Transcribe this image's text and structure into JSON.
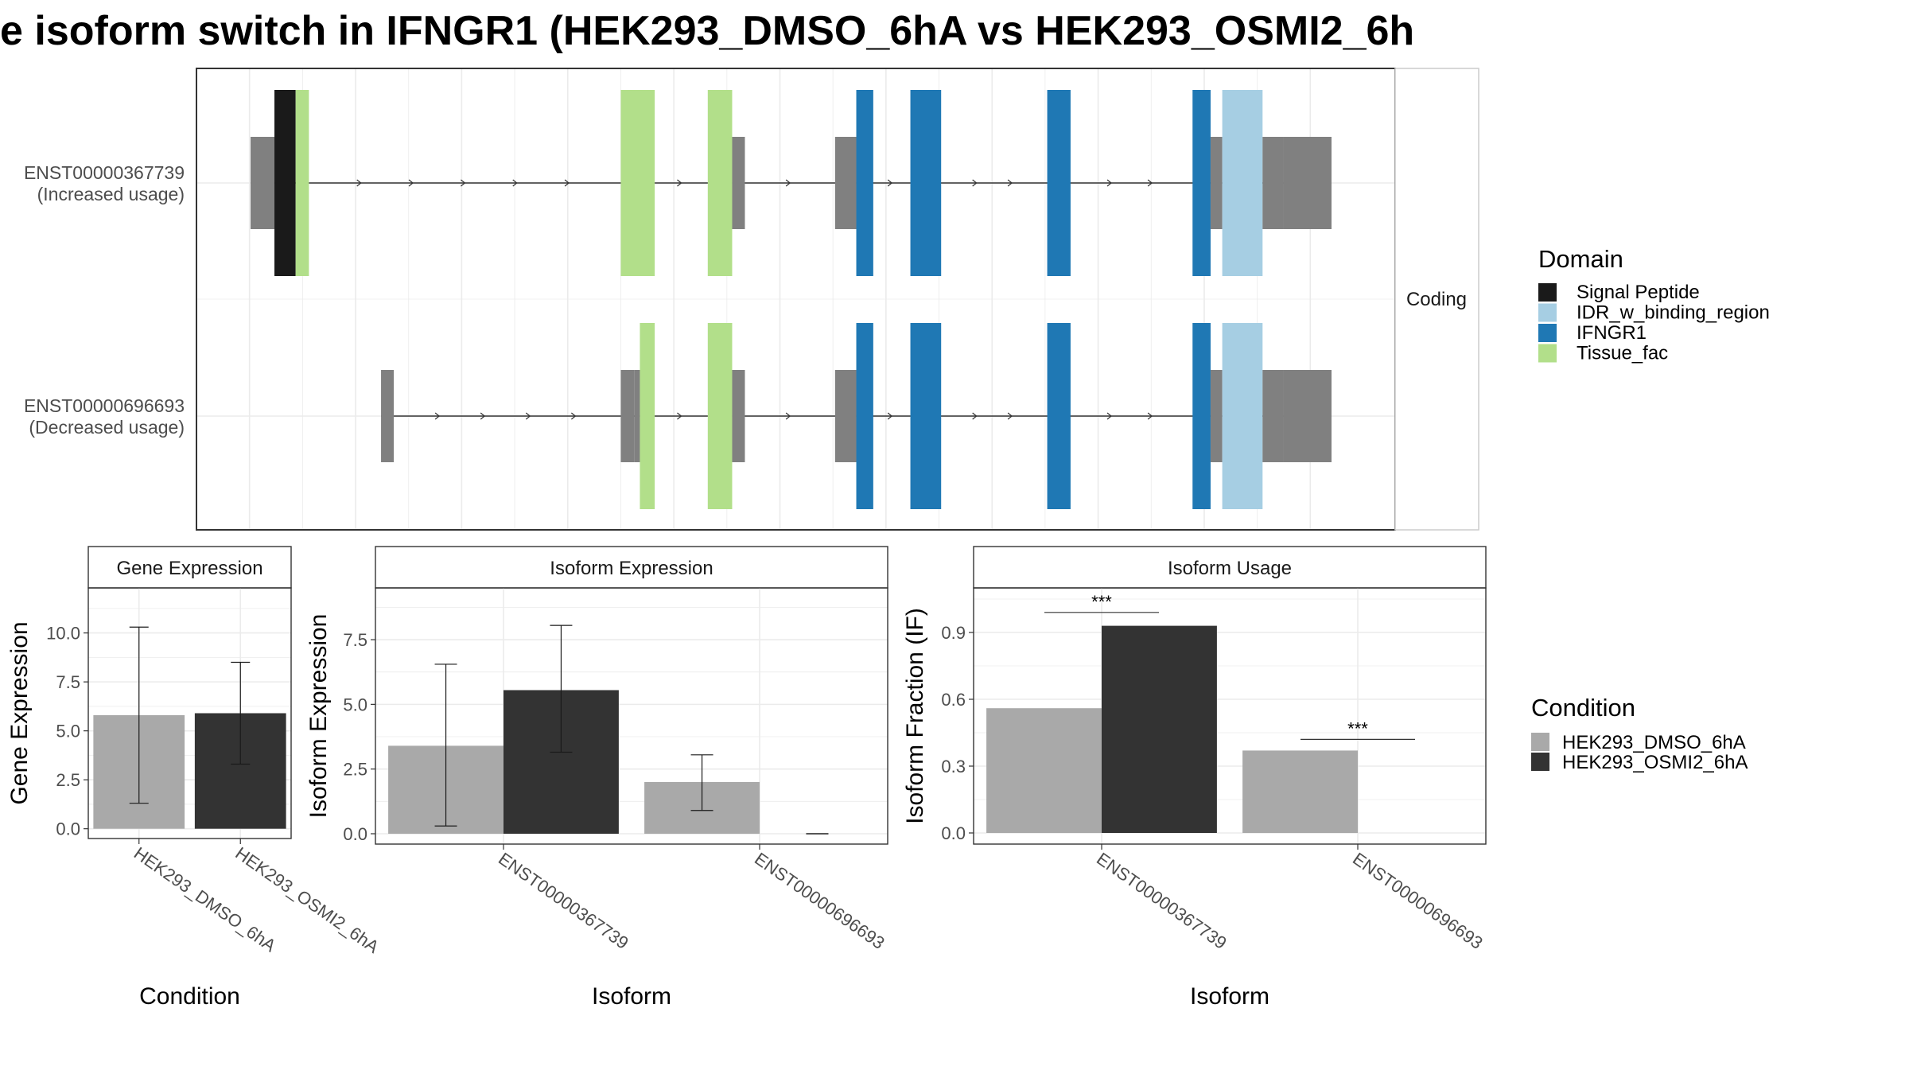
{
  "title": "e isoform switch in IFNGR1 (HEK293_DMSO_6hA vs HEK293_OSMI2_6h",
  "colors": {
    "utr": "#808080",
    "signal_peptide": "#1a1a1a",
    "idr": "#a6cee3",
    "ifngr1": "#1f78b4",
    "tissue_fac": "#b2df8a",
    "dmso": "#a9a9a9",
    "osmi2": "#333333",
    "grid": "#ebebeb",
    "panel_border": "#333333",
    "strip_border": "#333333"
  },
  "structure": {
    "facet_label": "Coding",
    "transcripts": [
      {
        "id": "ENST00000367739",
        "usage": "(Increased usage)",
        "segments": [
          {
            "s": 0.01,
            "e": 0.235,
            "t": "utr"
          },
          {
            "s": 0.235,
            "e": 0.435,
            "t": "signal_peptide"
          },
          {
            "s": 0.435,
            "e": 0.56,
            "t": "tissue_fac"
          },
          {
            "s": 3.5,
            "e": 3.82,
            "t": "tissue_fac"
          },
          {
            "s": 4.32,
            "e": 4.55,
            "t": "tissue_fac"
          },
          {
            "s": 4.55,
            "e": 4.67,
            "t": "utr"
          },
          {
            "s": 5.52,
            "e": 5.72,
            "t": "utr"
          },
          {
            "s": 5.72,
            "e": 5.88,
            "t": "ifngr1"
          },
          {
            "s": 6.23,
            "e": 6.52,
            "t": "ifngr1"
          },
          {
            "s": 7.52,
            "e": 7.74,
            "t": "ifngr1"
          },
          {
            "s": 8.89,
            "e": 9.06,
            "t": "ifngr1"
          },
          {
            "s": 9.06,
            "e": 9.17,
            "t": "utr"
          },
          {
            "s": 9.17,
            "e": 9.55,
            "t": "idr"
          },
          {
            "s": 9.55,
            "e": 9.75,
            "t": "utr"
          },
          {
            "s": 9.75,
            "e": 10.2,
            "t": "utr"
          }
        ]
      },
      {
        "id": "ENST00000696693",
        "usage": "(Decreased usage)",
        "segments": [
          {
            "s": 1.24,
            "e": 1.36,
            "t": "utr"
          },
          {
            "s": 3.5,
            "e": 3.63,
            "t": "utr"
          },
          {
            "s": 3.63,
            "e": 3.68,
            "t": "utr"
          },
          {
            "s": 3.68,
            "e": 3.82,
            "t": "tissue_fac"
          },
          {
            "s": 4.32,
            "e": 4.55,
            "t": "tissue_fac"
          },
          {
            "s": 4.55,
            "e": 4.67,
            "t": "utr"
          },
          {
            "s": 5.52,
            "e": 5.72,
            "t": "utr"
          },
          {
            "s": 5.72,
            "e": 5.88,
            "t": "ifngr1"
          },
          {
            "s": 6.23,
            "e": 6.52,
            "t": "ifngr1"
          },
          {
            "s": 7.52,
            "e": 7.74,
            "t": "ifngr1"
          },
          {
            "s": 8.89,
            "e": 9.06,
            "t": "ifngr1"
          },
          {
            "s": 9.06,
            "e": 9.17,
            "t": "utr"
          },
          {
            "s": 9.17,
            "e": 9.55,
            "t": "idr"
          },
          {
            "s": 9.55,
            "e": 9.75,
            "t": "utr"
          },
          {
            "s": 9.75,
            "e": 10.2,
            "t": "utr"
          }
        ]
      }
    ],
    "legend_title": "Domain",
    "legend": [
      {
        "label": "Signal Peptide",
        "t": "signal_peptide"
      },
      {
        "label": "IDR_w_binding_region",
        "t": "idr"
      },
      {
        "label": "IFNGR1",
        "t": "ifngr1"
      },
      {
        "label": "Tissue_fac",
        "t": "tissue_fac"
      }
    ]
  },
  "chart_data": [
    {
      "type": "bar",
      "strip": "Gene Expression",
      "xlabel": "Condition",
      "ylabel": "Gene Expression",
      "categories": [
        "HEK293_DMSO_6hA",
        "HEK293_OSMI2_6hA"
      ],
      "values": [
        5.8,
        5.9
      ],
      "error_low": [
        1.3,
        3.3
      ],
      "error_high": [
        10.3,
        8.5
      ],
      "ylim": [
        -0.5,
        12.3
      ],
      "yticks": [
        0.0,
        2.5,
        5.0,
        7.5,
        10.0
      ],
      "ytick_labels": [
        "0.0",
        "2.5",
        "5.0",
        "7.5",
        "10.0"
      ]
    },
    {
      "type": "bar",
      "strip": "Isoform Expression",
      "xlabel": "Isoform",
      "ylabel": "Isoform Expression",
      "categories": [
        "ENST00000367739",
        "ENST00000696693"
      ],
      "series": [
        {
          "name": "HEK293_DMSO_6hA",
          "values": [
            3.4,
            2.0
          ],
          "error_low": [
            0.3,
            0.9
          ],
          "error_high": [
            6.55,
            3.05
          ]
        },
        {
          "name": "HEK293_OSMI2_6hA",
          "values": [
            5.55,
            0.0
          ],
          "error_low": [
            3.15,
            0.0
          ],
          "error_high": [
            8.05,
            0.0
          ]
        }
      ],
      "ylim": [
        -0.4,
        9.5
      ],
      "yticks": [
        0.0,
        2.5,
        5.0,
        7.5
      ],
      "ytick_labels": [
        "0.0",
        "2.5",
        "5.0",
        "7.5"
      ]
    },
    {
      "type": "bar",
      "strip": "Isoform Usage",
      "xlabel": "Isoform",
      "ylabel": "Isoform Fraction (IF)",
      "categories": [
        "ENST00000367739",
        "ENST00000696693"
      ],
      "series": [
        {
          "name": "HEK293_DMSO_6hA",
          "values": [
            0.56,
            0.37
          ]
        },
        {
          "name": "HEK293_OSMI2_6hA",
          "values": [
            0.93,
            0.0
          ]
        }
      ],
      "significance": [
        "***",
        "***"
      ],
      "sig_y": [
        0.99,
        0.42
      ],
      "ylim": [
        -0.05,
        1.1
      ],
      "yticks": [
        0.0,
        0.3,
        0.6,
        0.9
      ],
      "ytick_labels": [
        "0.0",
        "0.3",
        "0.6",
        "0.9"
      ]
    }
  ],
  "condition_legend": {
    "title": "Condition",
    "items": [
      "HEK293_DMSO_6hA",
      "HEK293_OSMI2_6hA"
    ]
  }
}
